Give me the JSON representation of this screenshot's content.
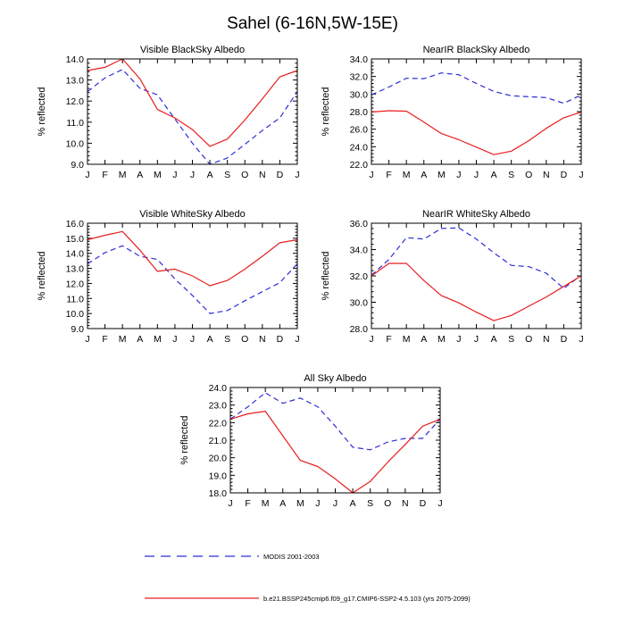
{
  "page_title": "Sahel (6-16N,5W-15E)",
  "colors": {
    "obs": "#2d2dd8",
    "model": "#e81e1e",
    "axis": "#000000"
  },
  "legend": {
    "obs_label": "MODIS 2001-2003",
    "model_label": "b.e21.BSSP245cmip6.f09_g17.CMIP6-SSP2-4.5.103 (yrs 2075-2099)"
  },
  "chart_data": [
    {
      "type": "line",
      "title": "Visible BlackSky Albedo",
      "xlabel": "",
      "ylabel": "% reflected",
      "categories": [
        "J",
        "F",
        "M",
        "A",
        "M",
        "J",
        "J",
        "A",
        "S",
        "O",
        "N",
        "D",
        "J"
      ],
      "ylim": [
        9.0,
        14.0
      ],
      "yticks": [
        9.0,
        10.0,
        11.0,
        12.0,
        13.0,
        14.0
      ],
      "series": [
        {
          "name": "MODIS 2001-2003",
          "style": "dashed",
          "values": [
            12.45,
            13.1,
            13.5,
            12.6,
            12.3,
            11.15,
            10.0,
            9.0,
            9.3,
            9.95,
            10.6,
            11.2,
            12.45
          ]
        },
        {
          "name": "b.e21.BSSP245cmip6.f09_g17.CMIP6-SSP2-4.5.103 (yrs 2075-2099)",
          "style": "solid",
          "values": [
            13.45,
            13.6,
            14.0,
            13.05,
            11.6,
            11.2,
            10.65,
            9.85,
            10.2,
            11.1,
            12.1,
            13.15,
            13.45
          ]
        }
      ]
    },
    {
      "type": "line",
      "title": "NearIR BlackSky Albedo",
      "xlabel": "",
      "ylabel": "% reflected",
      "categories": [
        "J",
        "F",
        "M",
        "A",
        "M",
        "J",
        "J",
        "A",
        "S",
        "O",
        "N",
        "D",
        "J"
      ],
      "ylim": [
        22.0,
        34.0
      ],
      "yticks": [
        22.0,
        24.0,
        26.0,
        28.0,
        30.0,
        32.0,
        34.0
      ],
      "series": [
        {
          "name": "MODIS 2001-2003",
          "style": "dashed",
          "values": [
            29.9,
            30.8,
            31.8,
            31.75,
            32.4,
            32.2,
            31.2,
            30.3,
            29.8,
            29.7,
            29.6,
            28.95,
            29.9
          ]
        },
        {
          "name": "b.e21.BSSP245cmip6.f09_g17.CMIP6-SSP2-4.5.103 (yrs 2075-2099)",
          "style": "solid",
          "values": [
            27.95,
            28.1,
            28.05,
            26.8,
            25.5,
            24.8,
            23.95,
            23.1,
            23.5,
            24.7,
            26.1,
            27.3,
            27.95
          ]
        }
      ]
    },
    {
      "type": "line",
      "title": "Visible WhiteSky Albedo",
      "xlabel": "",
      "ylabel": "% reflected",
      "categories": [
        "J",
        "F",
        "M",
        "A",
        "M",
        "J",
        "J",
        "A",
        "S",
        "O",
        "N",
        "D",
        "J"
      ],
      "ylim": [
        9.0,
        16.0
      ],
      "yticks": [
        9.0,
        10.0,
        11.0,
        12.0,
        13.0,
        14.0,
        15.0,
        16.0
      ],
      "series": [
        {
          "name": "MODIS 2001-2003",
          "style": "dashed",
          "values": [
            13.3,
            14.05,
            14.5,
            13.8,
            13.6,
            12.3,
            11.2,
            10.0,
            10.2,
            10.85,
            11.45,
            12.05,
            13.3
          ]
        },
        {
          "name": "b.e21.BSSP245cmip6.f09_g17.CMIP6-SSP2-4.5.103 (yrs 2075-2099)",
          "style": "solid",
          "values": [
            14.9,
            15.2,
            15.45,
            14.2,
            12.8,
            12.95,
            12.5,
            11.85,
            12.2,
            12.95,
            13.8,
            14.7,
            14.9
          ]
        }
      ]
    },
    {
      "type": "line",
      "title": "NearIR WhiteSky Albedo",
      "xlabel": "",
      "ylabel": "% reflected",
      "categories": [
        "J",
        "F",
        "M",
        "A",
        "M",
        "J",
        "J",
        "A",
        "S",
        "O",
        "N",
        "D",
        "J"
      ],
      "ylim": [
        28.0,
        36.0
      ],
      "yticks": [
        28.0,
        30.0,
        32.0,
        34.0,
        36.0
      ],
      "series": [
        {
          "name": "MODIS 2001-2003",
          "style": "dashed",
          "values": [
            32.05,
            33.25,
            34.9,
            34.8,
            35.6,
            35.65,
            34.8,
            33.75,
            32.8,
            32.7,
            32.2,
            31.05,
            32.05
          ]
        },
        {
          "name": "b.e21.BSSP245cmip6.f09_g17.CMIP6-SSP2-4.5.103 (yrs 2075-2099)",
          "style": "solid",
          "values": [
            32.0,
            32.95,
            32.95,
            31.65,
            30.5,
            29.95,
            29.25,
            28.6,
            29.0,
            29.7,
            30.4,
            31.2,
            32.0
          ]
        }
      ]
    },
    {
      "type": "line",
      "title": "All Sky Albedo",
      "xlabel": "",
      "ylabel": "% reflected",
      "categories": [
        "J",
        "F",
        "M",
        "A",
        "M",
        "J",
        "J",
        "A",
        "S",
        "O",
        "N",
        "D",
        "J"
      ],
      "ylim": [
        18.0,
        24.0
      ],
      "yticks": [
        18.0,
        19.0,
        20.0,
        21.0,
        22.0,
        23.0,
        24.0
      ],
      "series": [
        {
          "name": "MODIS 2001-2003",
          "style": "dashed",
          "values": [
            22.2,
            22.9,
            23.7,
            23.1,
            23.4,
            22.9,
            21.8,
            20.6,
            20.45,
            20.9,
            21.1,
            21.1,
            22.2
          ]
        },
        {
          "name": "b.e21.BSSP245cmip6.f09_g17.CMIP6-SSP2-4.5.103 (yrs 2075-2099)",
          "style": "solid",
          "values": [
            22.2,
            22.5,
            22.65,
            21.25,
            19.85,
            19.5,
            18.8,
            18.0,
            18.65,
            19.75,
            20.75,
            21.8,
            22.2
          ]
        }
      ]
    }
  ]
}
